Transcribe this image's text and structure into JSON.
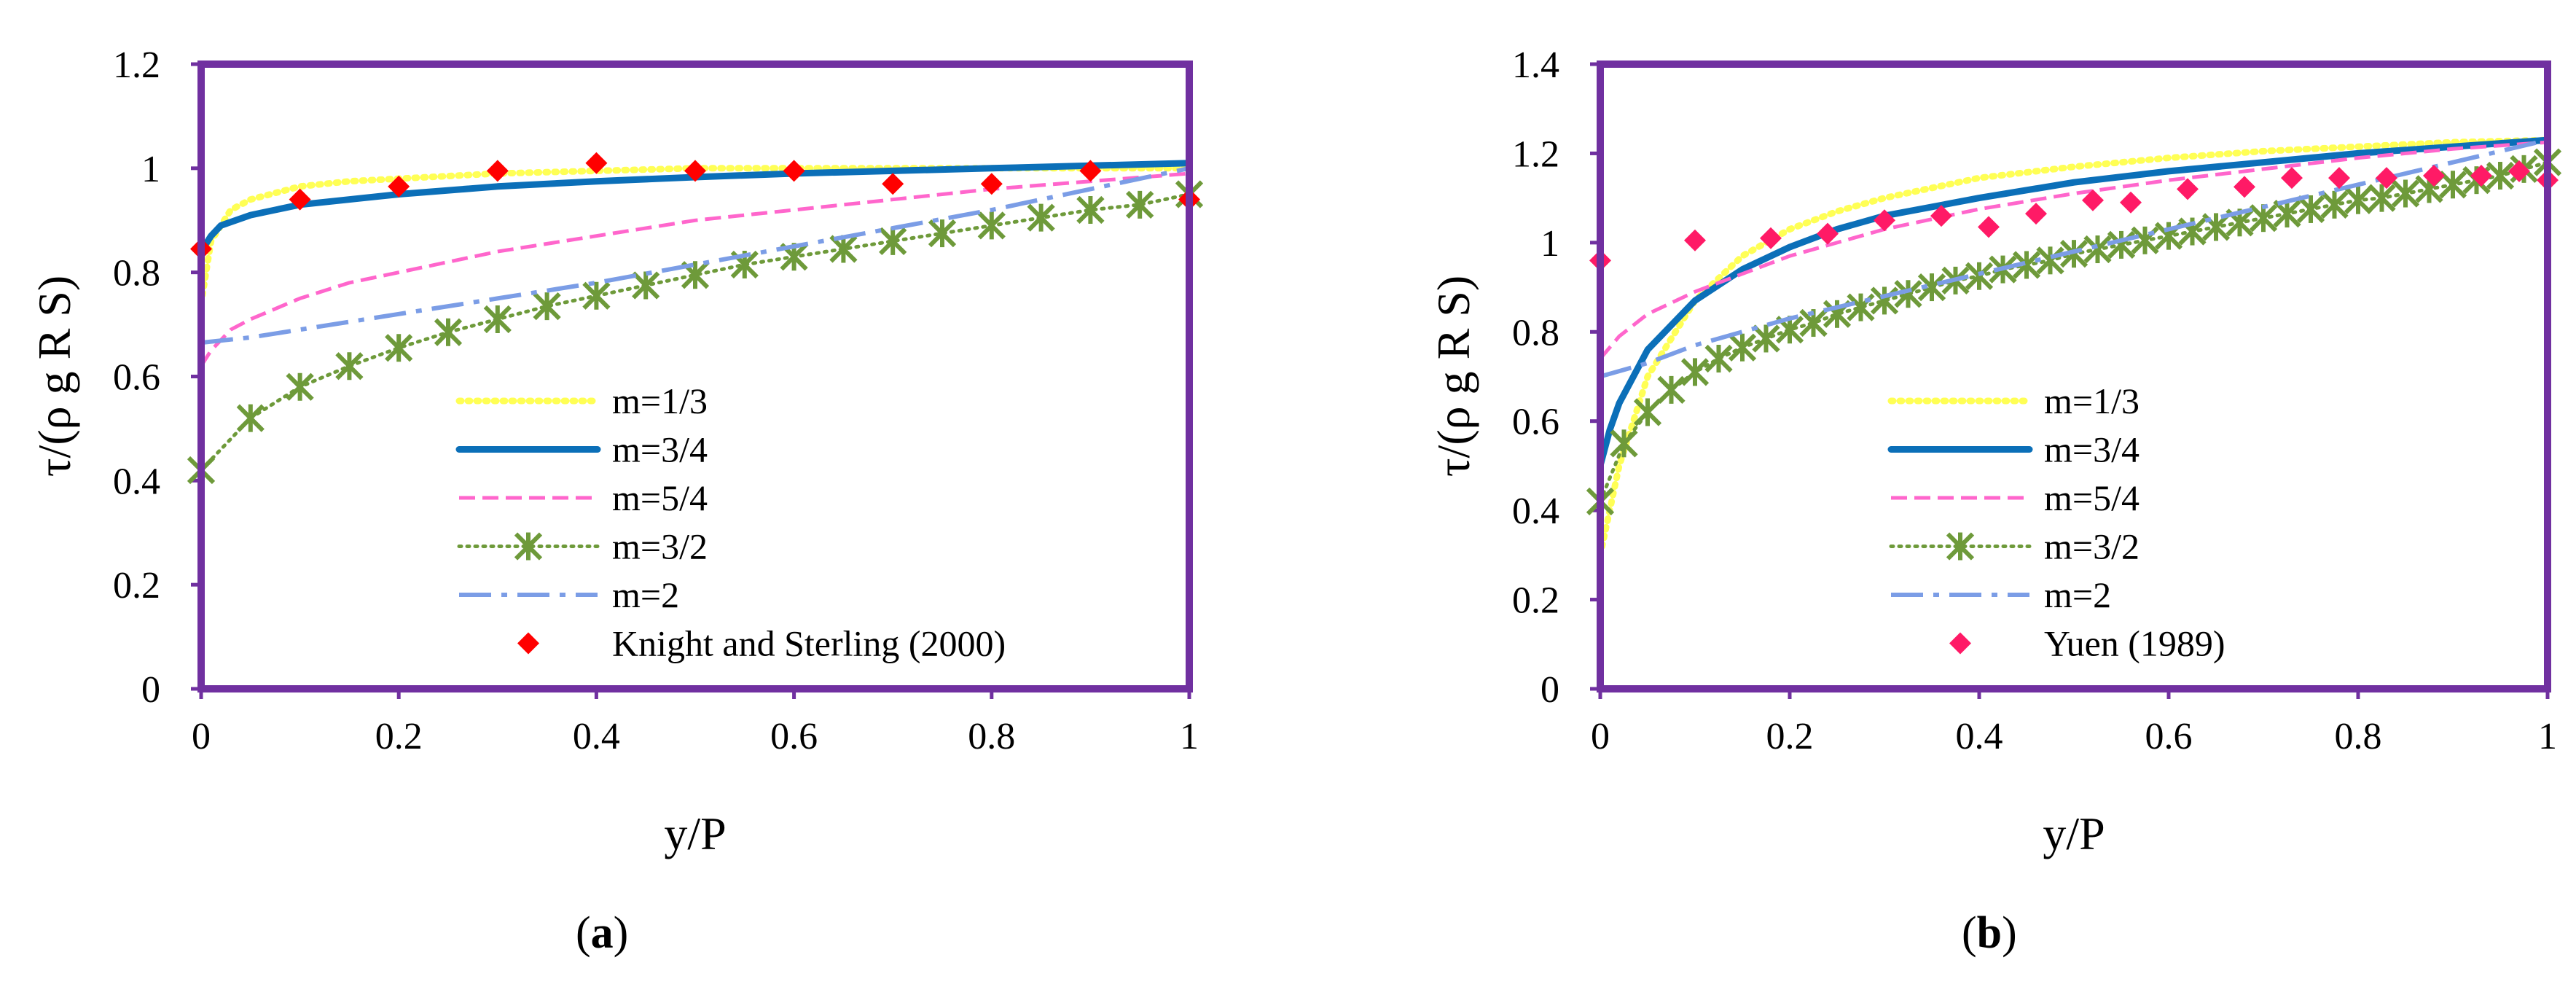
{
  "chart_data": [
    {
      "type": "line",
      "panel_label": "a",
      "xlabel": "y/P",
      "ylabel": "τ/(ρ g R S)",
      "xlim": [
        0,
        1
      ],
      "ylim": [
        0,
        1.2
      ],
      "xticks": [
        0,
        0.2,
        0.4,
        0.6,
        0.8,
        1
      ],
      "xtick_labels": [
        "0",
        "0.2",
        "0.4",
        "0.6",
        "0.8",
        "1"
      ],
      "yticks": [
        0,
        0.2,
        0.4,
        0.6,
        0.8,
        1,
        1.2
      ],
      "ytick_labels": [
        "0",
        "0.2",
        "0.4",
        "0.6",
        "0.8",
        "1",
        "1.2"
      ],
      "grid": false,
      "legend_position": "bottom-right",
      "series": [
        {
          "name": "m=1/3",
          "style": "dotted",
          "color": "#FFFF55",
          "x": [
            0,
            0.01,
            0.03,
            0.05,
            0.1,
            0.15,
            0.2,
            0.3,
            0.4,
            0.5,
            0.6,
            0.7,
            0.8,
            0.9,
            1
          ],
          "y": [
            0.74,
            0.86,
            0.92,
            0.94,
            0.965,
            0.975,
            0.98,
            0.99,
            0.995,
            1.0,
            1.0,
            1.0,
            1.0,
            1.0,
            1.0
          ]
        },
        {
          "name": "m=3/4",
          "style": "solid",
          "color": "#0B6FB8",
          "x": [
            0,
            0.01,
            0.02,
            0.05,
            0.1,
            0.2,
            0.3,
            0.4,
            0.5,
            0.6,
            0.7,
            0.8,
            0.9,
            1
          ],
          "y": [
            0.84,
            0.87,
            0.89,
            0.91,
            0.93,
            0.95,
            0.965,
            0.975,
            0.983,
            0.99,
            0.995,
            1.0,
            1.005,
            1.01
          ]
        },
        {
          "name": "m=5/4",
          "style": "dashed",
          "color": "#FF66CC",
          "x": [
            0,
            0.01,
            0.03,
            0.05,
            0.1,
            0.15,
            0.2,
            0.3,
            0.4,
            0.5,
            0.6,
            0.7,
            0.8,
            0.9,
            1
          ],
          "y": [
            0.62,
            0.65,
            0.69,
            0.71,
            0.75,
            0.78,
            0.8,
            0.84,
            0.87,
            0.9,
            0.92,
            0.94,
            0.96,
            0.975,
            0.99
          ]
        },
        {
          "name": "m=3/2",
          "style": "dotted-marker",
          "color": "#6E9A3A",
          "marker": "asterisk",
          "x": [
            0,
            0.05,
            0.1,
            0.15,
            0.2,
            0.25,
            0.3,
            0.35,
            0.4,
            0.45,
            0.5,
            0.55,
            0.6,
            0.65,
            0.7,
            0.75,
            0.8,
            0.85,
            0.9,
            0.95,
            1
          ],
          "y": [
            0.42,
            0.52,
            0.58,
            0.62,
            0.655,
            0.685,
            0.71,
            0.735,
            0.755,
            0.775,
            0.795,
            0.815,
            0.83,
            0.845,
            0.86,
            0.875,
            0.89,
            0.905,
            0.92,
            0.93,
            0.95
          ]
        },
        {
          "name": "m=2",
          "style": "dashdot",
          "color": "#7B9DE6",
          "x": [
            0,
            0.05,
            0.1,
            0.2,
            0.3,
            0.4,
            0.5,
            0.6,
            0.7,
            0.8,
            0.9,
            1
          ],
          "y": [
            0.665,
            0.675,
            0.69,
            0.72,
            0.75,
            0.78,
            0.815,
            0.85,
            0.885,
            0.92,
            0.96,
            1.0
          ]
        },
        {
          "name": "Knight and Sterling (2000)",
          "style": "markers",
          "color": "#FF0000",
          "marker": "diamond",
          "x": [
            0,
            0.1,
            0.2,
            0.3,
            0.4,
            0.5,
            0.6,
            0.7,
            0.8,
            0.9,
            1
          ],
          "y": [
            0.845,
            0.94,
            0.965,
            0.995,
            1.01,
            0.995,
            0.995,
            0.97,
            0.97,
            0.995,
            0.94
          ]
        }
      ]
    },
    {
      "type": "line",
      "panel_label": "b",
      "xlabel": "y/P",
      "ylabel": "τ/(ρ g R S)",
      "xlim": [
        0,
        1
      ],
      "ylim": [
        0,
        1.4
      ],
      "xticks": [
        0,
        0.2,
        0.4,
        0.6,
        0.8,
        1
      ],
      "xtick_labels": [
        "0",
        "0.2",
        "0.4",
        "0.6",
        "0.8",
        "1"
      ],
      "yticks": [
        0,
        0.2,
        0.4,
        0.6,
        0.8,
        1,
        1.2,
        1.4
      ],
      "ytick_labels": [
        "0",
        "0.2",
        "0.4",
        "0.6",
        "0.8",
        "1",
        "1.2",
        "1.4"
      ],
      "grid": false,
      "legend_position": "bottom-right",
      "series": [
        {
          "name": "m=1/3",
          "style": "dotted",
          "color": "#FFFF55",
          "x": [
            0,
            0.01,
            0.02,
            0.05,
            0.1,
            0.15,
            0.2,
            0.25,
            0.3,
            0.4,
            0.5,
            0.6,
            0.7,
            0.8,
            0.9,
            1
          ],
          "y": [
            0.3,
            0.4,
            0.5,
            0.7,
            0.87,
            0.97,
            1.03,
            1.07,
            1.1,
            1.145,
            1.17,
            1.19,
            1.205,
            1.215,
            1.225,
            1.23
          ]
        },
        {
          "name": "m=3/4",
          "style": "solid",
          "color": "#0B6FB8",
          "x": [
            0,
            0.01,
            0.02,
            0.05,
            0.1,
            0.15,
            0.2,
            0.25,
            0.3,
            0.4,
            0.5,
            0.6,
            0.7,
            0.8,
            0.9,
            1
          ],
          "y": [
            0.5,
            0.58,
            0.64,
            0.76,
            0.87,
            0.94,
            0.99,
            1.03,
            1.06,
            1.1,
            1.135,
            1.16,
            1.18,
            1.2,
            1.215,
            1.23
          ]
        },
        {
          "name": "m=5/4",
          "style": "dashed",
          "color": "#FF66CC",
          "x": [
            0,
            0.02,
            0.05,
            0.1,
            0.15,
            0.2,
            0.25,
            0.3,
            0.4,
            0.5,
            0.6,
            0.7,
            0.8,
            0.9,
            1
          ],
          "y": [
            0.74,
            0.79,
            0.84,
            0.89,
            0.93,
            0.97,
            1.0,
            1.03,
            1.075,
            1.11,
            1.14,
            1.165,
            1.19,
            1.21,
            1.225
          ]
        },
        {
          "name": "m=3/2",
          "style": "dotted-marker",
          "color": "#6E9A3A",
          "marker": "asterisk",
          "x": [
            0,
            0.025,
            0.05,
            0.075,
            0.1,
            0.125,
            0.15,
            0.175,
            0.2,
            0.225,
            0.25,
            0.275,
            0.3,
            0.325,
            0.35,
            0.375,
            0.4,
            0.425,
            0.45,
            0.475,
            0.5,
            0.525,
            0.55,
            0.575,
            0.6,
            0.625,
            0.65,
            0.675,
            0.7,
            0.725,
            0.75,
            0.775,
            0.8,
            0.825,
            0.85,
            0.875,
            0.9,
            0.925,
            0.95,
            0.975,
            1
          ],
          "y": [
            0.42,
            0.55,
            0.62,
            0.67,
            0.71,
            0.74,
            0.765,
            0.785,
            0.805,
            0.82,
            0.84,
            0.855,
            0.87,
            0.885,
            0.9,
            0.915,
            0.925,
            0.94,
            0.95,
            0.96,
            0.975,
            0.985,
            0.995,
            1.005,
            1.015,
            1.025,
            1.035,
            1.045,
            1.055,
            1.065,
            1.075,
            1.085,
            1.095,
            1.1,
            1.11,
            1.12,
            1.13,
            1.14,
            1.15,
            1.165,
            1.18
          ]
        },
        {
          "name": "m=2",
          "style": "dashdot",
          "color": "#7B9DE6",
          "x": [
            0,
            0.05,
            0.1,
            0.2,
            0.3,
            0.4,
            0.5,
            0.6,
            0.7,
            0.8,
            0.9,
            1
          ],
          "y": [
            0.7,
            0.73,
            0.77,
            0.83,
            0.88,
            0.93,
            0.98,
            1.03,
            1.08,
            1.13,
            1.18,
            1.23
          ]
        },
        {
          "name": "Yuen (1989)",
          "style": "markers",
          "color": "#FF1A66",
          "marker": "diamond",
          "x": [
            0,
            0.1,
            0.18,
            0.24,
            0.3,
            0.36,
            0.41,
            0.46,
            0.52,
            0.56,
            0.62,
            0.68,
            0.73,
            0.78,
            0.83,
            0.88,
            0.93,
            0.97,
            1
          ],
          "y": [
            0.96,
            1.005,
            1.01,
            1.02,
            1.05,
            1.06,
            1.035,
            1.065,
            1.095,
            1.09,
            1.12,
            1.125,
            1.145,
            1.145,
            1.145,
            1.15,
            1.15,
            1.16,
            1.14
          ]
        }
      ]
    }
  ]
}
